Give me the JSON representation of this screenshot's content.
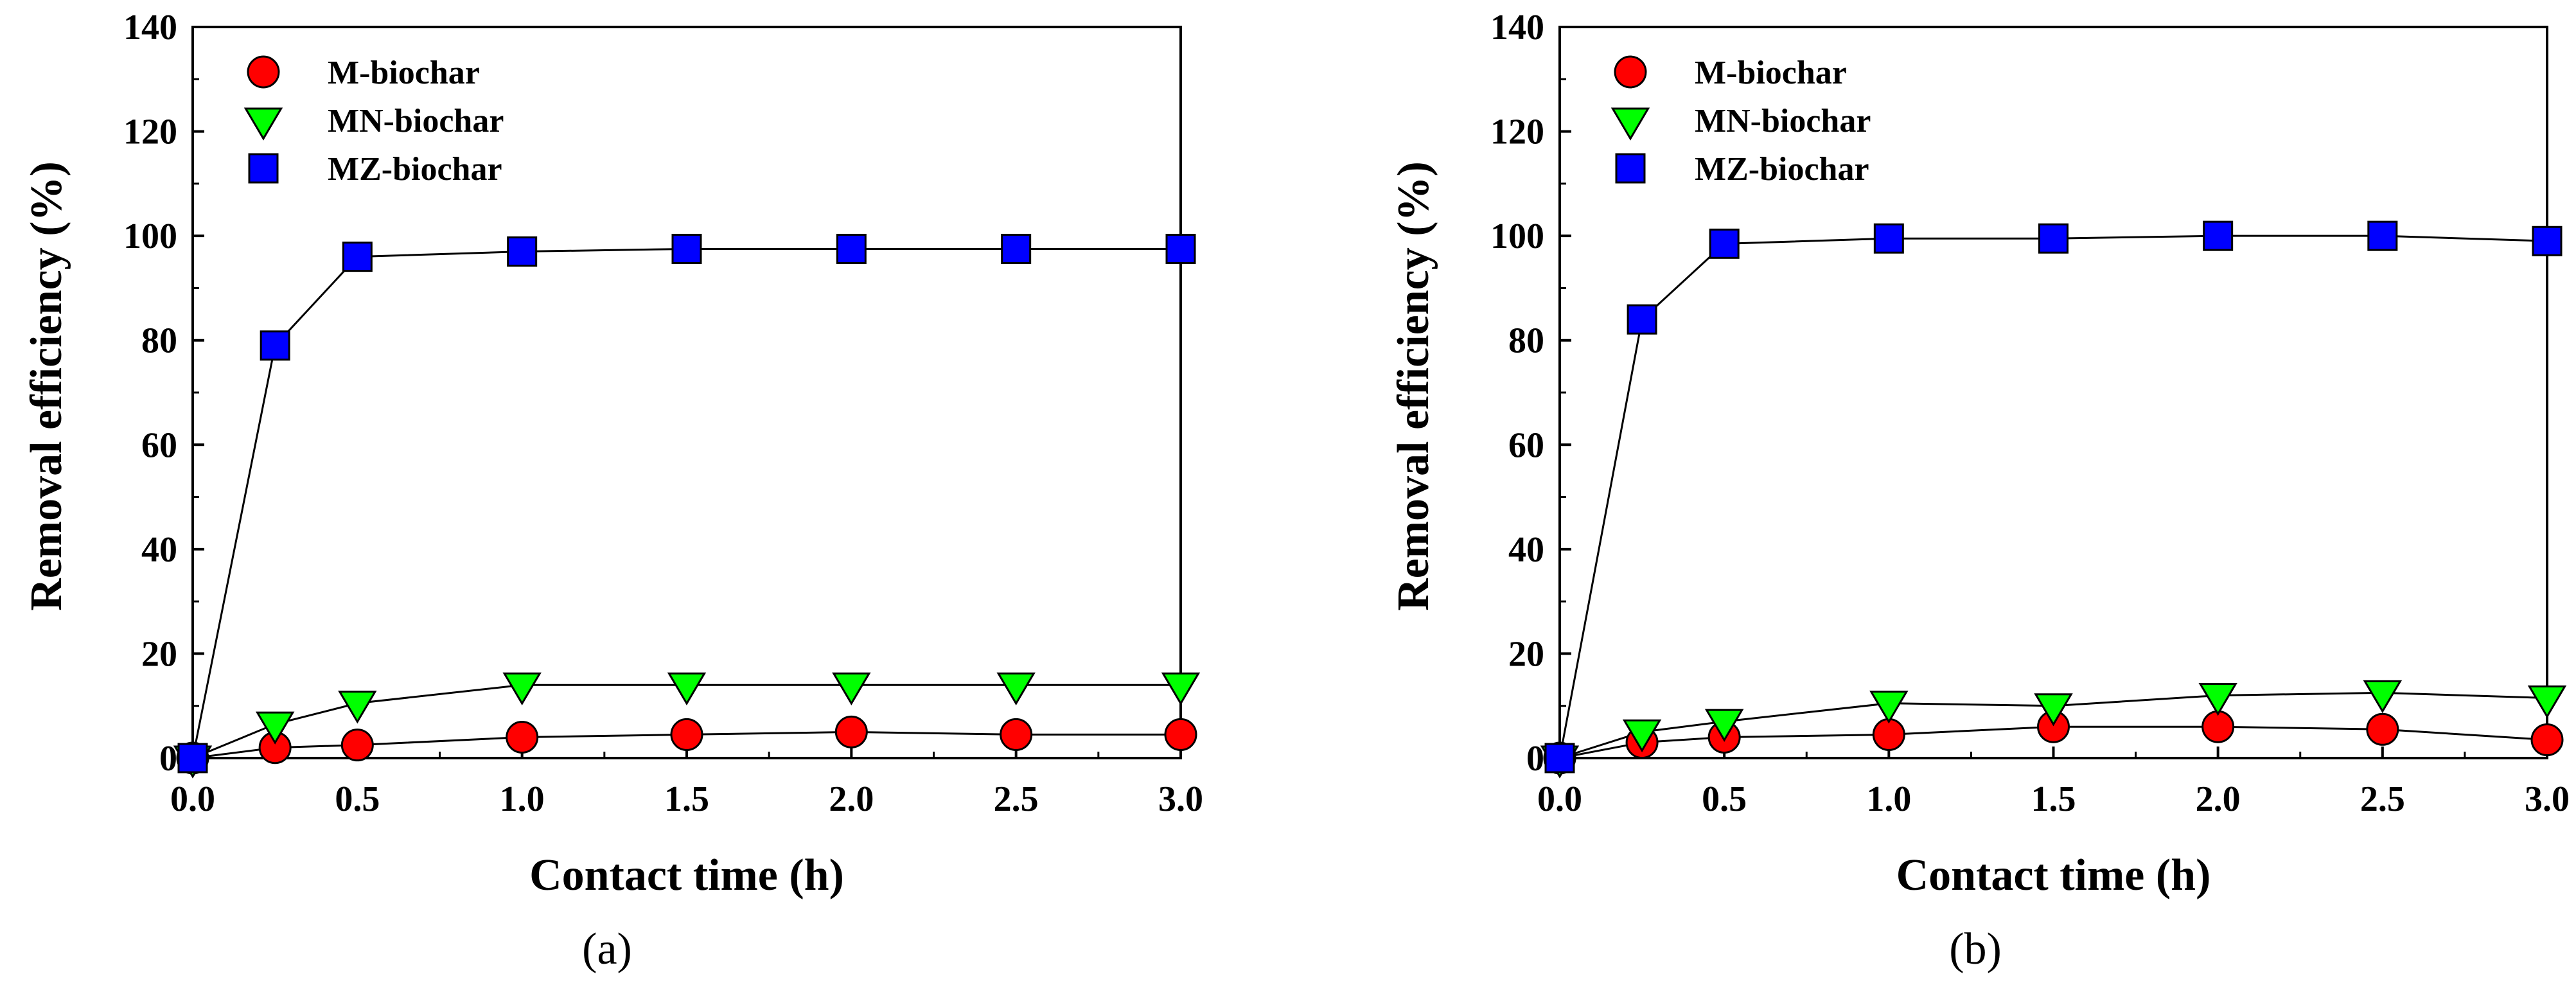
{
  "chart_data": [
    {
      "type": "line",
      "panel_label": "(a)",
      "xlabel": "Contact time (h)",
      "ylabel": "Removal efficiency (%)",
      "xlim": [
        0,
        3
      ],
      "ylim": [
        0,
        140
      ],
      "xticks": [
        "0.0",
        "0.5",
        "1.0",
        "1.5",
        "2.0",
        "2.5",
        "3.0"
      ],
      "yticks": [
        "0",
        "20",
        "40",
        "60",
        "80",
        "100",
        "120",
        "140"
      ],
      "legend_position": "top-left",
      "x": [
        0,
        0.25,
        0.5,
        1.0,
        1.5,
        2.0,
        2.5,
        3.0
      ],
      "series": [
        {
          "name": "M-biochar",
          "marker": "circle",
          "color": "#ff0000",
          "values": [
            0,
            2,
            2.5,
            4,
            4.5,
            5,
            4.5,
            4.5
          ]
        },
        {
          "name": "MN-biochar",
          "marker": "triangle-down",
          "color": "#00ff00",
          "values": [
            0,
            6.5,
            10.5,
            14,
            14,
            14,
            14,
            14
          ]
        },
        {
          "name": "MZ-biochar",
          "marker": "square",
          "color": "#0000ff",
          "values": [
            0,
            79,
            96,
            97,
            97.5,
            97.5,
            97.5,
            97.5
          ]
        }
      ]
    },
    {
      "type": "line",
      "panel_label": "(b)",
      "xlabel": "Contact time (h)",
      "ylabel": "Removal efficiency (%)",
      "xlim": [
        0,
        3
      ],
      "ylim": [
        0,
        140
      ],
      "xticks": [
        "0.0",
        "0.5",
        "1.0",
        "1.5",
        "2.0",
        "2.5",
        "3.0"
      ],
      "yticks": [
        "0",
        "20",
        "40",
        "60",
        "80",
        "100",
        "120",
        "140"
      ],
      "legend_position": "top-left",
      "x": [
        0,
        0.25,
        0.5,
        1.0,
        1.5,
        2.0,
        2.5,
        3.0
      ],
      "series": [
        {
          "name": "M-biochar",
          "marker": "circle",
          "color": "#ff0000",
          "values": [
            0,
            3,
            4,
            4.5,
            6,
            6,
            5.5,
            3.5
          ]
        },
        {
          "name": "MN-biochar",
          "marker": "triangle-down",
          "color": "#00ff00",
          "values": [
            0,
            5,
            7,
            10.5,
            10,
            12,
            12.5,
            11.5
          ]
        },
        {
          "name": "MZ-biochar",
          "marker": "square",
          "color": "#0000ff",
          "values": [
            0,
            84,
            98.5,
            99.5,
            99.5,
            100,
            100,
            99
          ]
        }
      ]
    }
  ]
}
